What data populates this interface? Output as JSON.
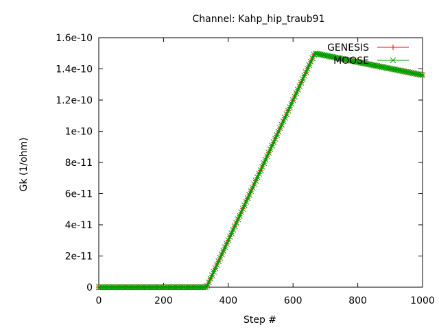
{
  "chart_data": {
    "type": "line",
    "title": "Channel: Kahp_hip_traub91",
    "xlabel": "Step #",
    "ylabel": "Gk (1/ohm)",
    "xlim": [
      0,
      1000
    ],
    "ylim": [
      0,
      1.6e-10
    ],
    "xticks": [
      0,
      200,
      400,
      600,
      800,
      1000
    ],
    "xtick_labels": [
      "0",
      "200",
      "400",
      "600",
      "800",
      "1000"
    ],
    "yticks": [
      0,
      2e-11,
      4e-11,
      6e-11,
      8e-11,
      1e-10,
      1.2e-10,
      1.4e-10,
      1.6e-10
    ],
    "ytick_labels": [
      "0",
      "2e-11",
      "4e-11",
      "6e-11",
      "8e-11",
      "1e-10",
      "1.2e-10",
      "1.4e-10",
      "1.6e-10"
    ],
    "grid": false,
    "legend_position": "top-right",
    "series": [
      {
        "name": "GENESIS",
        "color": "#ff0000",
        "marker": "plus",
        "x": [
          0,
          333,
          667,
          750,
          833,
          917,
          1000
        ],
        "y": [
          0,
          0,
          1.5e-10,
          1.465e-10,
          1.43e-10,
          1.395e-10,
          1.36e-10
        ]
      },
      {
        "name": "MOOSE",
        "color": "#00a000",
        "marker": "cross",
        "x": [
          0,
          333,
          667,
          750,
          833,
          917,
          1000
        ],
        "y": [
          0,
          0,
          1.5e-10,
          1.465e-10,
          1.43e-10,
          1.395e-10,
          1.36e-10
        ]
      }
    ]
  }
}
